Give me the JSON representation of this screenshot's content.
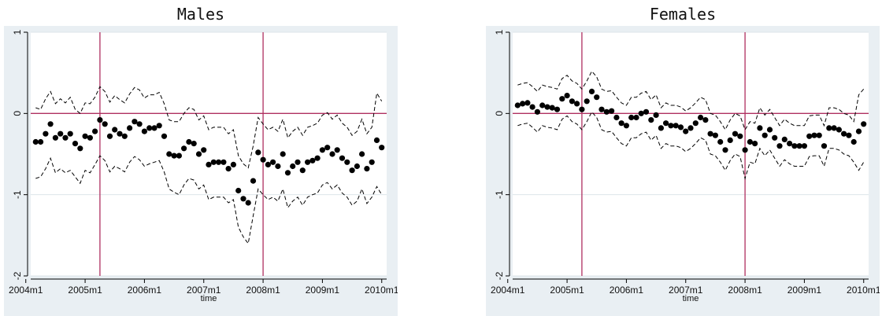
{
  "colors": {
    "outer_background": "#e9eff3",
    "plot_background": "#ffffff",
    "marker": "#000000",
    "ci_line": "#000000",
    "reference_line": "#b03060",
    "gridline": "#dde4ea"
  },
  "chart_data": [
    {
      "type": "scatter",
      "title": "Males",
      "xlabel": "time",
      "ylabel": "",
      "x_start": "2004m3",
      "x_step": "1 month",
      "xlim": [
        2004.083,
        2010.083
      ],
      "ylim": [
        -2,
        1
      ],
      "x_ticks": [
        "2004m1",
        "2005m1",
        "2006m1",
        "2007m1",
        "2008m1",
        "2009m1",
        "2010m1"
      ],
      "y_ticks": [
        "1",
        "0",
        "-1",
        "-2"
      ],
      "y_tick_values": [
        1,
        0,
        -1,
        -2
      ],
      "reference_lines": {
        "vertical": [
          "2005m4",
          "2008m1"
        ],
        "horizontal": [
          0
        ]
      },
      "grid": true,
      "legend": "none",
      "series": [
        {
          "style": "markers",
          "values": [
            -0.35,
            -0.35,
            -0.25,
            -0.13,
            -0.3,
            -0.25,
            -0.3,
            -0.25,
            -0.37,
            -0.43,
            -0.28,
            -0.3,
            -0.22,
            -0.08,
            -0.13,
            -0.28,
            -0.2,
            -0.25,
            -0.28,
            -0.18,
            -0.1,
            -0.13,
            -0.22,
            -0.18,
            -0.18,
            -0.15,
            -0.28,
            -0.5,
            -0.52,
            -0.52,
            -0.43,
            -0.35,
            -0.37,
            -0.5,
            -0.45,
            -0.63,
            -0.6,
            -0.6,
            -0.6,
            -0.68,
            -0.63,
            -0.95,
            -1.05,
            -1.1,
            -0.83,
            -0.48,
            -0.57,
            -0.63,
            -0.6,
            -0.65,
            -0.5,
            -0.73,
            -0.65,
            -0.6,
            -0.7,
            -0.6,
            -0.58,
            -0.55,
            -0.45,
            -0.42,
            -0.5,
            -0.45,
            -0.55,
            -0.6,
            -0.7,
            -0.65,
            -0.5,
            -0.68,
            -0.6,
            -0.33,
            -0.42
          ]
        },
        {
          "style": "dashed",
          "values": [
            0.07,
            0.05,
            0.18,
            0.27,
            0.12,
            0.18,
            0.13,
            0.2,
            0.05,
            0.0,
            0.13,
            0.12,
            0.2,
            0.33,
            0.27,
            0.14,
            0.22,
            0.17,
            0.13,
            0.24,
            0.32,
            0.29,
            0.19,
            0.23,
            0.23,
            0.26,
            0.12,
            -0.08,
            -0.1,
            -0.1,
            0.0,
            0.07,
            0.05,
            -0.08,
            -0.03,
            -0.2,
            -0.17,
            -0.17,
            -0.17,
            -0.25,
            -0.2,
            -0.52,
            -0.62,
            -0.67,
            -0.4,
            -0.05,
            -0.13,
            -0.2,
            -0.17,
            -0.22,
            -0.07,
            -0.3,
            -0.22,
            -0.17,
            -0.27,
            -0.17,
            -0.15,
            -0.12,
            -0.02,
            0.01,
            -0.07,
            -0.02,
            -0.12,
            -0.17,
            -0.27,
            -0.22,
            -0.07,
            -0.25,
            -0.17,
            0.25,
            0.15
          ]
        },
        {
          "style": "dashed",
          "values": [
            -0.8,
            -0.78,
            -0.68,
            -0.55,
            -0.73,
            -0.68,
            -0.73,
            -0.7,
            -0.78,
            -0.86,
            -0.7,
            -0.73,
            -0.63,
            -0.52,
            -0.58,
            -0.72,
            -0.65,
            -0.68,
            -0.72,
            -0.6,
            -0.53,
            -0.57,
            -0.65,
            -0.62,
            -0.6,
            -0.58,
            -0.72,
            -0.93,
            -0.97,
            -1.0,
            -0.88,
            -0.8,
            -0.82,
            -0.93,
            -0.88,
            -1.06,
            -1.03,
            -1.03,
            -1.03,
            -1.1,
            -1.06,
            -1.4,
            -1.52,
            -1.6,
            -1.26,
            -0.93,
            -1.0,
            -1.06,
            -1.03,
            -1.08,
            -0.93,
            -1.16,
            -1.08,
            -1.03,
            -1.13,
            -1.03,
            -1.0,
            -0.98,
            -0.88,
            -0.85,
            -0.93,
            -0.88,
            -0.98,
            -1.03,
            -1.13,
            -1.08,
            -0.93,
            -1.11,
            -1.03,
            -0.9,
            -1.0
          ]
        }
      ]
    },
    {
      "type": "scatter",
      "title": "Females",
      "xlabel": "time",
      "ylabel": "",
      "x_start": "2004m3",
      "x_step": "1 month",
      "xlim": [
        2004.083,
        2010.083
      ],
      "ylim": [
        -2,
        1
      ],
      "x_ticks": [
        "2004m1",
        "2005m1",
        "2006m1",
        "2007m1",
        "2008m1",
        "2009m1",
        "2010m1"
      ],
      "y_ticks": [
        "1",
        "0",
        "-1",
        "-2"
      ],
      "y_tick_values": [
        1,
        0,
        -1,
        -2
      ],
      "reference_lines": {
        "vertical": [
          "2005m4",
          "2008m1"
        ],
        "horizontal": [
          0
        ]
      },
      "grid": true,
      "legend": "none",
      "series": [
        {
          "style": "markers",
          "values": [
            0.1,
            0.12,
            0.13,
            0.08,
            0.02,
            0.1,
            0.08,
            0.07,
            0.05,
            0.18,
            0.22,
            0.15,
            0.12,
            0.05,
            0.15,
            0.27,
            0.2,
            0.05,
            0.02,
            0.03,
            -0.05,
            -0.12,
            -0.15,
            -0.05,
            -0.05,
            0.0,
            0.02,
            -0.08,
            -0.02,
            -0.18,
            -0.12,
            -0.15,
            -0.15,
            -0.17,
            -0.22,
            -0.18,
            -0.12,
            -0.05,
            -0.08,
            -0.25,
            -0.27,
            -0.35,
            -0.45,
            -0.33,
            -0.25,
            -0.28,
            -0.45,
            -0.35,
            -0.37,
            -0.18,
            -0.27,
            -0.2,
            -0.3,
            -0.4,
            -0.32,
            -0.37,
            -0.4,
            -0.4,
            -0.4,
            -0.28,
            -0.27,
            -0.27,
            -0.4,
            -0.18,
            -0.18,
            -0.2,
            -0.25,
            -0.27,
            -0.35,
            -0.22,
            -0.13
          ]
        },
        {
          "style": "dashed",
          "values": [
            0.35,
            0.37,
            0.38,
            0.33,
            0.27,
            0.35,
            0.33,
            0.32,
            0.3,
            0.43,
            0.47,
            0.4,
            0.37,
            0.3,
            0.4,
            0.52,
            0.45,
            0.3,
            0.27,
            0.28,
            0.2,
            0.13,
            0.1,
            0.2,
            0.2,
            0.25,
            0.27,
            0.17,
            0.23,
            0.07,
            0.13,
            0.1,
            0.1,
            0.08,
            0.03,
            0.07,
            0.13,
            0.2,
            0.17,
            0.0,
            -0.02,
            -0.1,
            -0.2,
            -0.08,
            0.0,
            -0.03,
            -0.2,
            -0.1,
            -0.12,
            0.07,
            -0.02,
            0.05,
            -0.05,
            -0.15,
            -0.07,
            -0.12,
            -0.15,
            -0.15,
            -0.15,
            -0.03,
            -0.02,
            -0.02,
            -0.15,
            0.07,
            0.07,
            0.05,
            0.0,
            -0.02,
            -0.1,
            0.23,
            0.3
          ]
        },
        {
          "style": "dashed",
          "values": [
            -0.15,
            -0.13,
            -0.12,
            -0.17,
            -0.23,
            -0.15,
            -0.17,
            -0.18,
            -0.2,
            -0.07,
            -0.03,
            -0.1,
            -0.13,
            -0.2,
            -0.1,
            0.02,
            -0.05,
            -0.2,
            -0.23,
            -0.22,
            -0.3,
            -0.37,
            -0.4,
            -0.3,
            -0.3,
            -0.25,
            -0.23,
            -0.33,
            -0.27,
            -0.43,
            -0.37,
            -0.4,
            -0.4,
            -0.42,
            -0.47,
            -0.43,
            -0.37,
            -0.3,
            -0.33,
            -0.5,
            -0.52,
            -0.6,
            -0.7,
            -0.58,
            -0.5,
            -0.53,
            -0.8,
            -0.6,
            -0.62,
            -0.43,
            -0.52,
            -0.45,
            -0.55,
            -0.65,
            -0.57,
            -0.62,
            -0.65,
            -0.65,
            -0.65,
            -0.53,
            -0.52,
            -0.52,
            -0.65,
            -0.43,
            -0.43,
            -0.45,
            -0.5,
            -0.52,
            -0.6,
            -0.7,
            -0.6
          ]
        }
      ]
    }
  ]
}
